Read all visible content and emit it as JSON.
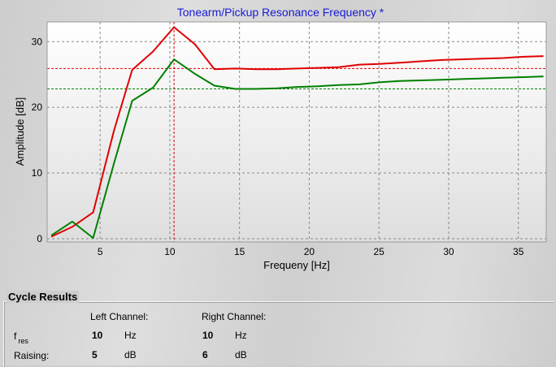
{
  "chart_data": {
    "type": "line",
    "title": "Tonearm/Pickup Resonance Frequency *",
    "xlabel": "Frequeny [Hz]",
    "ylabel": "Amplitude [dB]",
    "xlim": [
      1.2,
      37
    ],
    "ylim": [
      -0.5,
      33
    ],
    "xticks": [
      5,
      10,
      15,
      20,
      25,
      30,
      35
    ],
    "yticks": [
      0,
      10,
      20,
      30
    ],
    "grid": true,
    "series": [
      {
        "color": "#e00000",
        "points": [
          [
            1.5,
            0.3
          ],
          [
            3.0,
            1.8
          ],
          [
            4.5,
            4.0
          ],
          [
            6.0,
            16.5
          ],
          [
            7.3,
            25.7
          ],
          [
            8.8,
            28.5
          ],
          [
            10.3,
            32.2
          ],
          [
            11.8,
            29.6
          ],
          [
            13.2,
            25.8
          ],
          [
            14.7,
            25.9
          ],
          [
            16.2,
            25.8
          ],
          [
            17.7,
            25.8
          ],
          [
            19.1,
            25.9
          ],
          [
            20.6,
            26.0
          ],
          [
            22.1,
            26.1
          ],
          [
            23.6,
            26.5
          ],
          [
            25.0,
            26.6
          ],
          [
            26.5,
            26.8
          ],
          [
            28.0,
            27.0
          ],
          [
            29.5,
            27.2
          ],
          [
            30.9,
            27.3
          ],
          [
            32.4,
            27.4
          ],
          [
            33.9,
            27.5
          ],
          [
            35.4,
            27.7
          ],
          [
            36.8,
            27.8
          ]
        ]
      },
      {
        "color": "#008000",
        "points": [
          [
            1.5,
            0.5
          ],
          [
            3.0,
            2.6
          ],
          [
            4.5,
            0.1
          ],
          [
            6.0,
            11.5
          ],
          [
            7.3,
            21.0
          ],
          [
            8.8,
            23.0
          ],
          [
            10.3,
            27.3
          ],
          [
            11.8,
            25.1
          ],
          [
            13.2,
            23.3
          ],
          [
            14.7,
            22.8
          ],
          [
            16.2,
            22.8
          ],
          [
            17.7,
            22.9
          ],
          [
            19.1,
            23.1
          ],
          [
            20.6,
            23.2
          ],
          [
            22.1,
            23.4
          ],
          [
            23.6,
            23.5
          ],
          [
            25.0,
            23.8
          ],
          [
            26.5,
            24.0
          ],
          [
            28.0,
            24.1
          ],
          [
            29.5,
            24.2
          ],
          [
            30.9,
            24.3
          ],
          [
            32.4,
            24.4
          ],
          [
            33.9,
            24.5
          ],
          [
            35.4,
            24.6
          ],
          [
            36.8,
            24.7
          ]
        ]
      }
    ],
    "markers": [
      {
        "axis": "y",
        "value": 25.9,
        "color": "#e00000"
      },
      {
        "axis": "y",
        "value": 22.8,
        "color": "#008000"
      },
      {
        "axis": "x",
        "value": 10.3,
        "color": "#e00000"
      }
    ]
  },
  "results": {
    "title": "Cycle Results",
    "left_header": "Left Channel:",
    "right_header": "Right Channel:",
    "rows": [
      {
        "label": "f",
        "label_sub": "res",
        "left_value": "10",
        "left_unit": "Hz",
        "right_value": "10",
        "right_unit": "Hz"
      },
      {
        "label": "Raising:",
        "label_sub": "",
        "left_value": "5",
        "left_unit": "dB",
        "right_value": "6",
        "right_unit": "dB"
      }
    ]
  }
}
